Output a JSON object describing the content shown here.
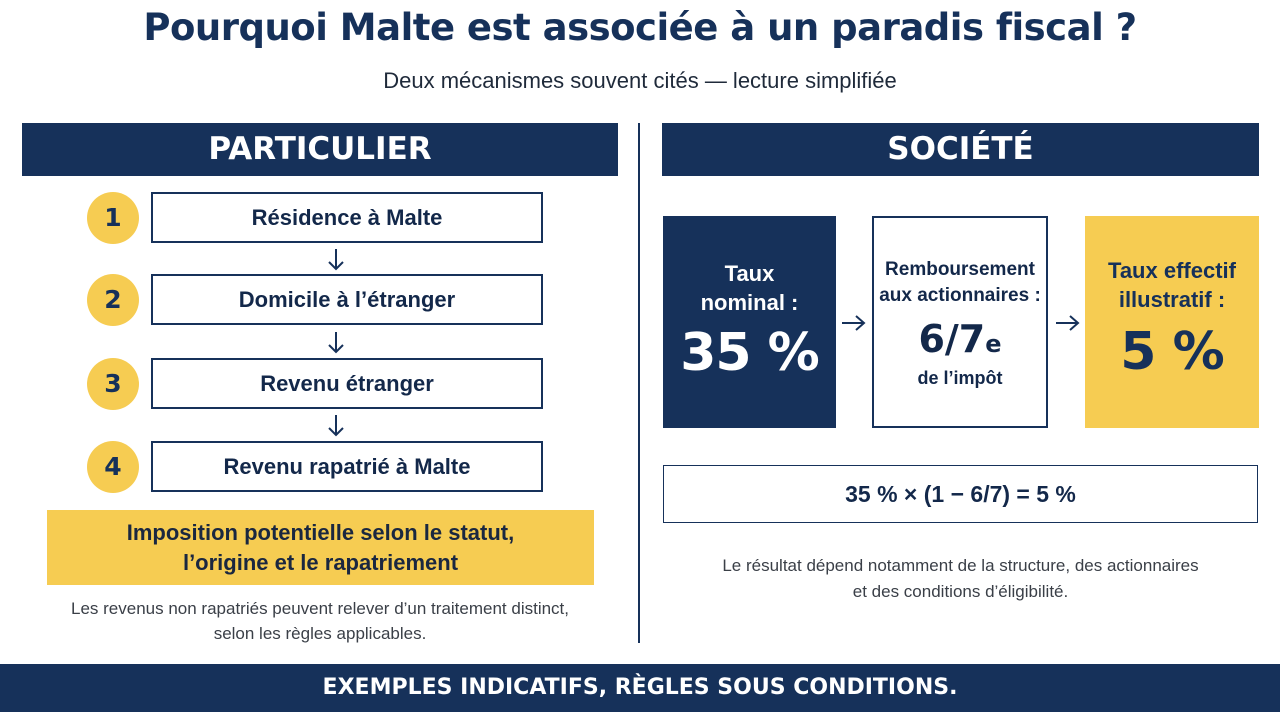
{
  "header": {
    "title": "Pourquoi Malte est associée à un paradis fiscal ?",
    "subtitle": "Deux mécanismes souvent cités — lecture simplifiée"
  },
  "particulier": {
    "heading": "PARTICULIER",
    "steps": [
      {
        "number": "1",
        "label": "Résidence à Malte"
      },
      {
        "number": "2",
        "label": "Domicile à l’étranger"
      },
      {
        "number": "3",
        "label": "Revenu étranger"
      },
      {
        "number": "4",
        "label": "Revenu rapatrié à Malte"
      }
    ],
    "callout_line1": "Imposition potentielle selon le statut,",
    "callout_line2": "l’origine et le rapatriement",
    "note_line1": "Les revenus non rapatriés peuvent relever d’un traitement distinct,",
    "note_line2": "selon les règles applicables."
  },
  "societe": {
    "heading": "SOCIÉTÉ",
    "nominal": {
      "label_line1": "Taux",
      "label_line2": "nominal :",
      "value": "35 %"
    },
    "refund": {
      "label_line1": "Remboursement",
      "label_line2": "aux actionnaires :",
      "value": "6/7",
      "suffix": "e",
      "sub": "de l’impôt"
    },
    "effective": {
      "label_line1": "Taux effectif",
      "label_line2": "illustratif :",
      "value": "5 %"
    },
    "formula": "35 % × (1 − 6/7) = 5 %",
    "note_line1": "Le résultat dépend notamment de la structure, des actionnaires",
    "note_line2": "et des conditions d’éligibilité."
  },
  "footer": {
    "text": "EXEMPLES INDICATIFS, RÈGLES SOUS CONDITIONS."
  },
  "colors": {
    "navy": "#16315a",
    "yellow": "#f6cc52"
  },
  "icons": {
    "step_connector": "arrow-down-icon",
    "flow_connector": "arrow-right-icon"
  }
}
